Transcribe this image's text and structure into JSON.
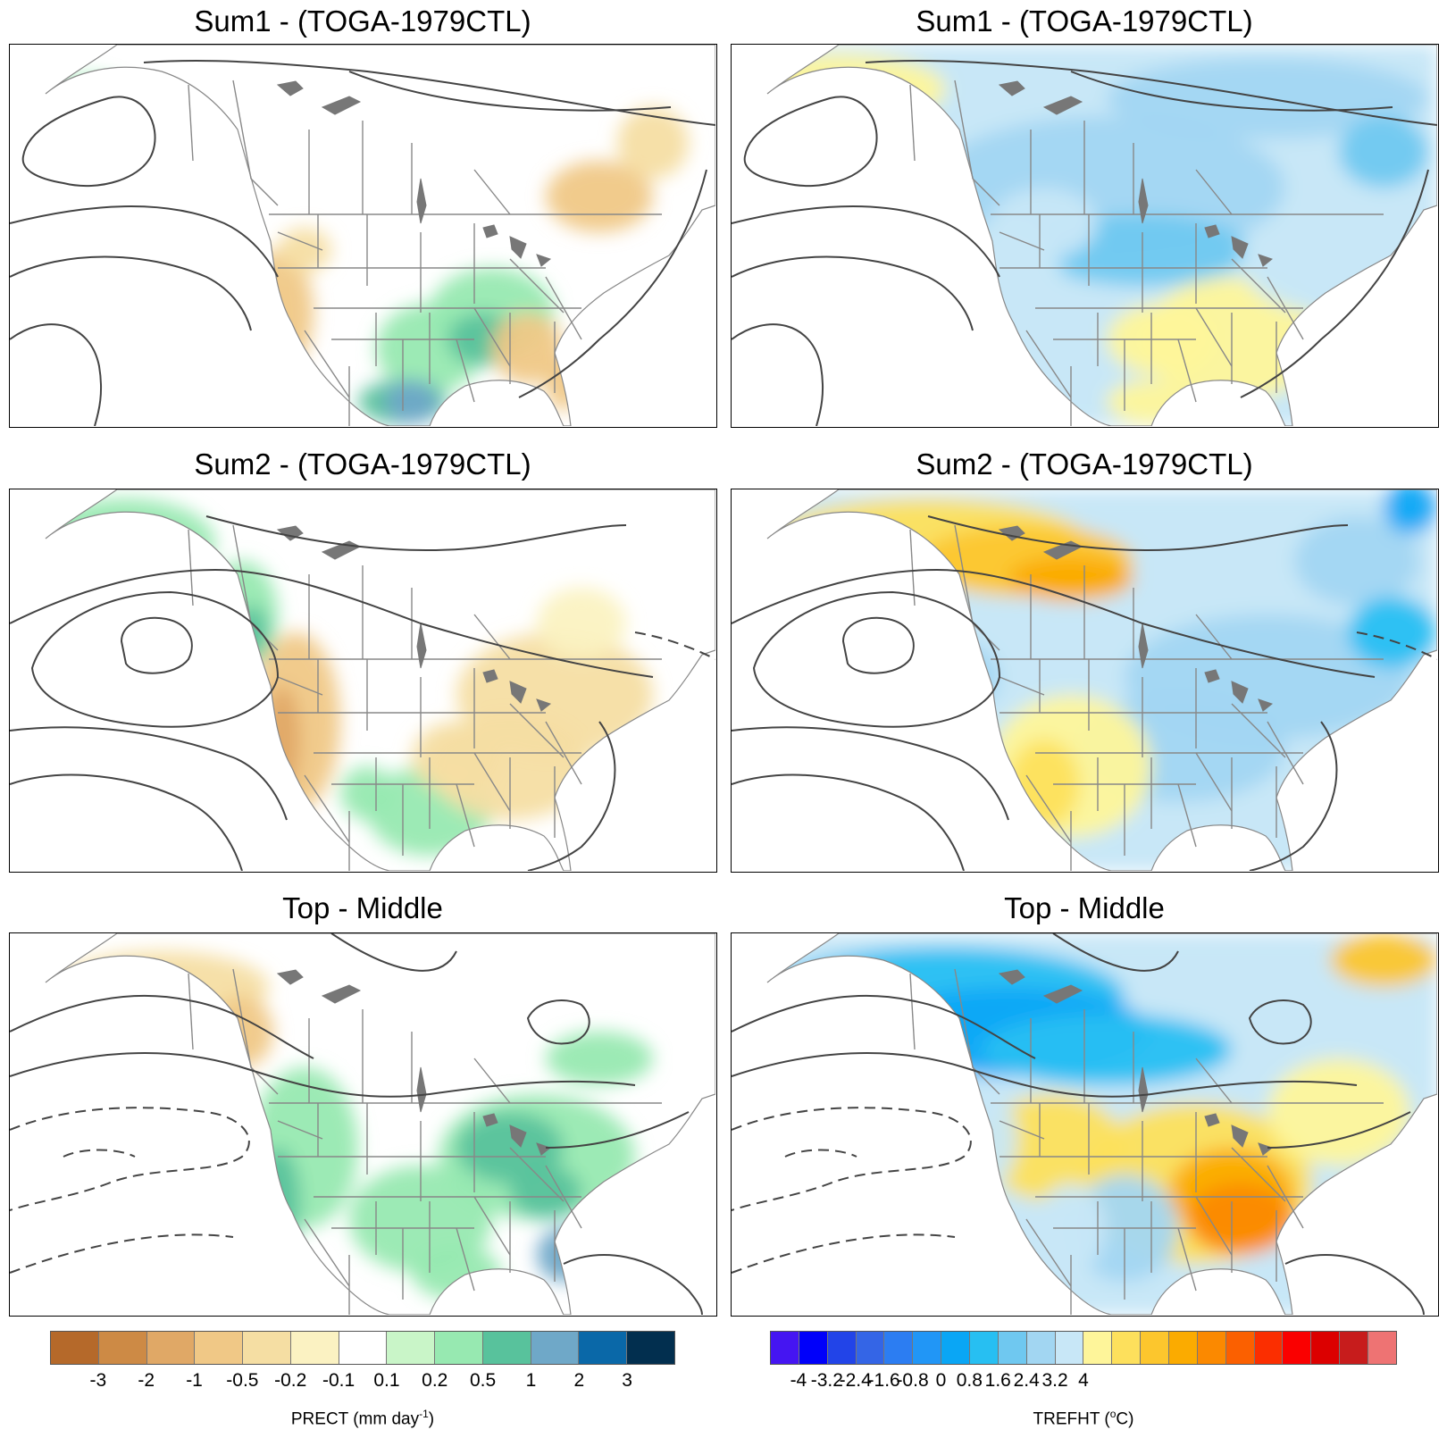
{
  "panels": [
    {
      "title": "Sum1 - (TOGA-1979CTL)",
      "variable": "precip"
    },
    {
      "title": "Sum1 - (TOGA-1979CTL)",
      "variable": "temp"
    },
    {
      "title": "Sum2 - (TOGA-1979CTL)",
      "variable": "precip"
    },
    {
      "title": "Sum2 - (TOGA-1979CTL)",
      "variable": "temp"
    },
    {
      "title": "Top - Middle",
      "variable": "precip"
    },
    {
      "title": "Top - Middle",
      "variable": "temp"
    }
  ],
  "precip_colorbar": {
    "label_main": "PRECT (mm day",
    "label_sup": "-1",
    "label_end": ")",
    "ticks": [
      "-3",
      "-2",
      "-1",
      "-0.5",
      "-0.2",
      "-0.1",
      "0.1",
      "0.2",
      "0.5",
      "1",
      "2",
      "3"
    ],
    "colors": [
      "#b5692a",
      "#cd8a45",
      "#e0a866",
      "#f0c886",
      "#f5dea3",
      "#fbf2c2",
      "#ffffff",
      "#c9f5c8",
      "#97e9b1",
      "#58c29c",
      "#6fa8c8",
      "#0a68a8",
      "#022f4f"
    ]
  },
  "temp_colorbar": {
    "label_main": "TREFHT (",
    "label_sup": "o",
    "label_end": "C)",
    "ticks": [
      "-4",
      "-3.2",
      "-2.4",
      "-1.6",
      "-0.8",
      "0",
      "0.8",
      "1.6",
      "2.4",
      "3.2",
      "4"
    ],
    "colors": [
      "#4515f2",
      "#0000fa",
      "#2244e8",
      "#3465e6",
      "#2c7df2",
      "#2196f6",
      "#0aa6f5",
      "#27bff2",
      "#6fc8f0",
      "#a2d6f2",
      "#c8e7f7",
      "#fef59a",
      "#fde05c",
      "#fcc62d",
      "#fbab00",
      "#fb8900",
      "#fb6000",
      "#fb2e00",
      "#fa0000",
      "#dc0000",
      "#c71c1c",
      "#ee7373"
    ]
  },
  "colors": {
    "land_outline": "#888888",
    "contour": "#444444",
    "frame": "#000000"
  }
}
